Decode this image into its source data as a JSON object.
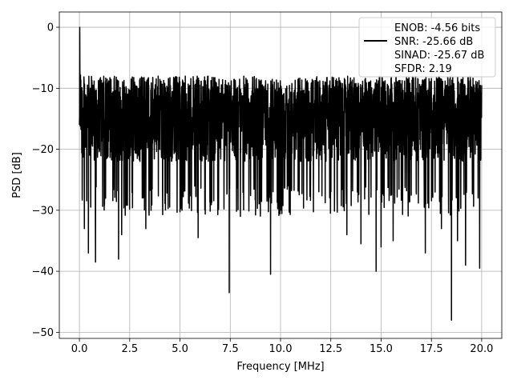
{
  "chart_data": {
    "type": "line",
    "title": "",
    "xlabel": "Frequency [MHz]",
    "ylabel": "PSD [dB]",
    "xlim": [
      -1.0,
      21.0
    ],
    "ylim": [
      -51.0,
      2.5
    ],
    "x_ticks": [
      0.0,
      2.5,
      5.0,
      7.5,
      10.0,
      12.5,
      15.0,
      17.5,
      20.0
    ],
    "x_tick_labels": [
      "0.0",
      "2.5",
      "5.0",
      "7.5",
      "10.0",
      "12.5",
      "15.0",
      "17.5",
      "20.0"
    ],
    "y_ticks": [
      0,
      -10,
      -20,
      -30,
      -40,
      -50
    ],
    "y_tick_labels": [
      "0",
      "−10",
      "−20",
      "−30",
      "−40",
      "−50"
    ],
    "grid": true,
    "legend_position": "top-right",
    "legend_entries": [
      {
        "label": "ENOB: -4.56 bits",
        "has_line": false
      },
      {
        "label": "SNR: -25.66 dB",
        "has_line": true
      },
      {
        "label": "SINAD: -25.67 dB",
        "has_line": false
      },
      {
        "label": "SFDR: 2.19",
        "has_line": false
      }
    ],
    "series": [
      {
        "color": "#000000",
        "x_range": [
          0.0,
          20.0
        ],
        "noise_band": {
          "typical_top": -8,
          "typical_bottom": -26
        },
        "peak": {
          "x": 0.0,
          "y": 0.0
        },
        "notable_dips": [
          {
            "x": 0.25,
            "y": -33
          },
          {
            "x": 0.45,
            "y": -37
          },
          {
            "x": 0.8,
            "y": -38.5
          },
          {
            "x": 1.95,
            "y": -38
          },
          {
            "x": 2.1,
            "y": -34
          },
          {
            "x": 3.3,
            "y": -33
          },
          {
            "x": 5.1,
            "y": -30
          },
          {
            "x": 5.9,
            "y": -34.5
          },
          {
            "x": 7.45,
            "y": -43.5
          },
          {
            "x": 8.0,
            "y": -31
          },
          {
            "x": 9.5,
            "y": -40.5
          },
          {
            "x": 10.0,
            "y": -30
          },
          {
            "x": 13.3,
            "y": -34
          },
          {
            "x": 14.0,
            "y": -35.5
          },
          {
            "x": 14.75,
            "y": -40
          },
          {
            "x": 15.0,
            "y": -36
          },
          {
            "x": 15.6,
            "y": -35
          },
          {
            "x": 17.2,
            "y": -37
          },
          {
            "x": 18.0,
            "y": -33
          },
          {
            "x": 18.5,
            "y": -48
          },
          {
            "x": 18.8,
            "y": -35
          },
          {
            "x": 19.2,
            "y": -39
          },
          {
            "x": 19.9,
            "y": -39.5
          }
        ]
      }
    ]
  }
}
